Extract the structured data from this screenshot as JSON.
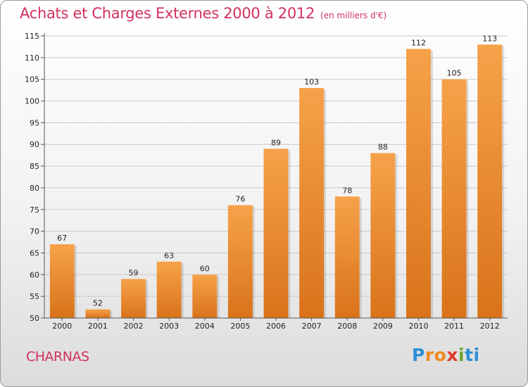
{
  "header": {
    "title": "Achats et Charges Externes 2000 à 2012",
    "unit": "(en milliers d'€)"
  },
  "footer": {
    "commune": "CHARNAS",
    "logo": {
      "letters": [
        "P",
        "r",
        "o",
        "x",
        "i",
        "t",
        "i"
      ],
      "colors": [
        "#2a8fd6",
        "#f08a1c",
        "#f08a1c",
        "#e23b2a",
        "#6aa52e",
        "#2a8fd6",
        "#2a8fd6"
      ]
    }
  },
  "chart_data": {
    "type": "bar",
    "title": "Achats et Charges Externes 2000 à 2012",
    "subtitle": "(en milliers d'€)",
    "categories": [
      "2000",
      "2001",
      "2002",
      "2003",
      "2004",
      "2005",
      "2006",
      "2007",
      "2008",
      "2009",
      "2010",
      "2011",
      "2012"
    ],
    "values": [
      67,
      52,
      59,
      63,
      60,
      76,
      89,
      103,
      78,
      88,
      112,
      105,
      113
    ],
    "ylim": [
      50,
      115
    ],
    "yticks": [
      50,
      55,
      60,
      65,
      70,
      75,
      80,
      85,
      90,
      95,
      100,
      105,
      110,
      115
    ],
    "grid": true,
    "bar_color": "#f0912e",
    "xlabel": "",
    "ylabel": ""
  }
}
